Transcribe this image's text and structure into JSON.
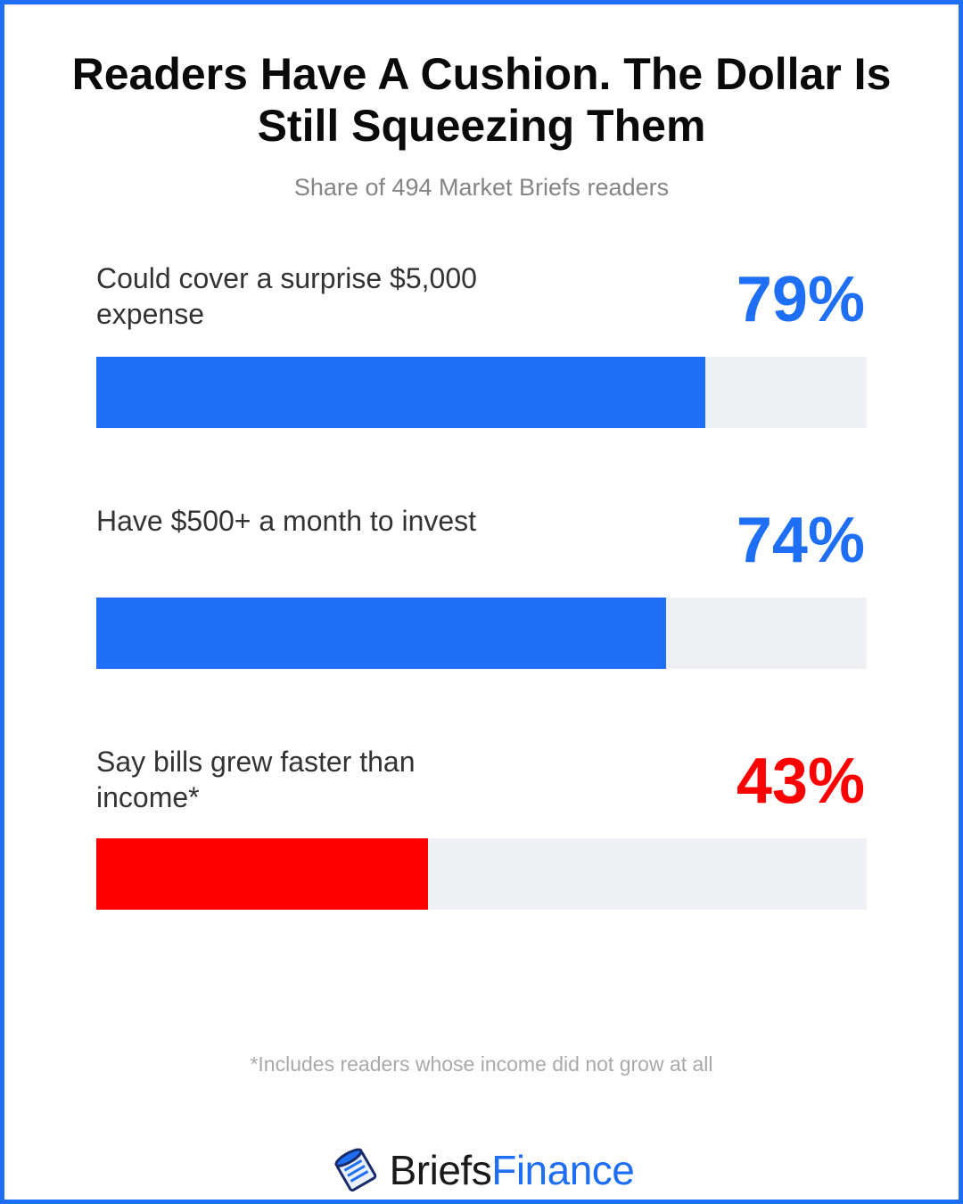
{
  "title": "Readers Have A Cushion. The Dollar Is Still Squeezing Them",
  "subtitle": "Share of 494 Market Briefs readers",
  "footnote": "*Includes readers whose income did not grow at all",
  "brand": {
    "part1": "Briefs",
    "part2": "Finance",
    "icon": "stacked-coins-logo-icon"
  },
  "colors": {
    "frame": "#1e6ff5",
    "positive": "#1e6ff5",
    "negative": "#ff0000",
    "track": "#eff0f4"
  },
  "chart_data": {
    "type": "bar",
    "orientation": "horizontal",
    "title": "Readers Have A Cushion. The Dollar Is Still Squeezing Them",
    "subtitle": "Share of 494 Market Briefs readers",
    "xlim": [
      0,
      100
    ],
    "unit": "%",
    "grid": false,
    "categories": [
      "Could cover a surprise $5,000 expense",
      "Have $500+ a month to invest",
      "Say bills grew faster than income*"
    ],
    "values": [
      79,
      74,
      43
    ],
    "labels": [
      "79%",
      "74%",
      "43%"
    ],
    "bar_colors": [
      "#1e6ff5",
      "#1e6ff5",
      "#ff0000"
    ]
  }
}
